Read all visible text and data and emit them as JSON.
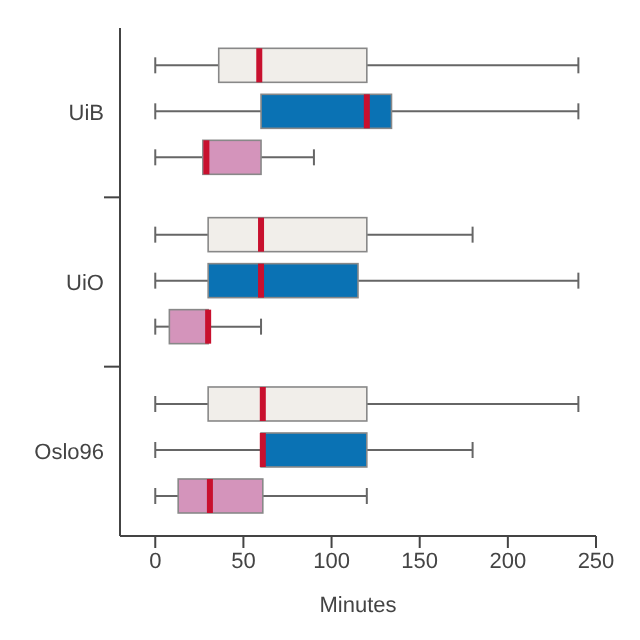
{
  "chart_data": {
    "type": "box",
    "orientation": "horizontal",
    "xlabel": "Minutes",
    "categories": [
      "UiB",
      "UiO",
      "Oslo96"
    ],
    "xlim": [
      -20,
      250
    ],
    "xticks": [
      0,
      50,
      100,
      150,
      200,
      250
    ],
    "series": [
      {
        "color": "#f1eeea",
        "boxes": [
          {
            "low": 0,
            "q1": 36,
            "median": 59,
            "q3": 120,
            "high": 240
          },
          {
            "low": 0,
            "q1": 30,
            "median": 60,
            "q3": 120,
            "high": 180
          },
          {
            "low": 0,
            "q1": 30,
            "median": 61,
            "q3": 120,
            "high": 240
          }
        ]
      },
      {
        "color": "#0a72b4",
        "boxes": [
          {
            "low": 0,
            "q1": 60,
            "median": 120,
            "q3": 134,
            "high": 240
          },
          {
            "low": 0,
            "q1": 30,
            "median": 60,
            "q3": 115,
            "high": 240
          },
          {
            "low": 0,
            "q1": 60,
            "median": 61,
            "q3": 120,
            "high": 180
          }
        ]
      },
      {
        "color": "#d494bb",
        "boxes": [
          {
            "low": 0,
            "q1": 27,
            "median": 29,
            "q3": 60,
            "high": 90
          },
          {
            "low": 0,
            "q1": 8,
            "median": 30,
            "q3": 30,
            "high": 60
          },
          {
            "low": 0,
            "q1": 13,
            "median": 31,
            "q3": 61,
            "high": 120
          }
        ]
      }
    ]
  }
}
